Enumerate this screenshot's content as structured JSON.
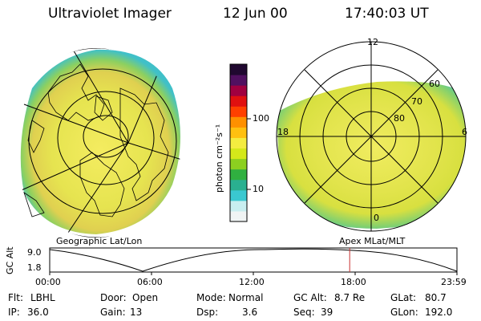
{
  "header": {
    "title": "Ultraviolet Imager",
    "date": "12 Jun 00",
    "time": "17:40:03 UT"
  },
  "colorbar": {
    "unit_label": "photon cm⁻²s⁻¹",
    "ticks": [
      "100",
      "10"
    ],
    "colors": [
      "#f0f4f4",
      "#c8eef0",
      "#3ac8d0",
      "#2ab090",
      "#30b040",
      "#8cd020",
      "#d4e81a",
      "#f4ec40",
      "#ffc010",
      "#ff9000",
      "#ff4000",
      "#e01010",
      "#a00040",
      "#501060",
      "#200830"
    ]
  },
  "left_panel": {
    "caption": "Geographic Lat/Lon",
    "colors": {
      "fill": "#e4e24c",
      "core": "#f0d060",
      "edge": "#30c0d0",
      "edge2": "#60d080"
    }
  },
  "right_panel": {
    "caption": "Apex MLat/MLT",
    "mlt_labels": {
      "top": "12",
      "left": "18",
      "right": "6",
      "bottom": "0"
    },
    "lat_labels": [
      "60",
      "70",
      "80"
    ]
  },
  "timeline": {
    "axis_label": "GC Alt",
    "y_ticks": [
      "9.0",
      "1.8"
    ],
    "x_ticks": [
      "00:00",
      "06:00",
      "12:00",
      "18:00",
      "23:59"
    ],
    "marker_time": "17:40",
    "marker_color": "#c83030"
  },
  "info": {
    "rows": [
      [
        {
          "key": "Flt:",
          "value": "LBHL"
        },
        {
          "key": "Door:",
          "value": "Open"
        },
        {
          "key": "Mode:",
          "value": "Normal"
        },
        {
          "key": "GC Alt:",
          "value": "8.7 Re"
        },
        {
          "key": "GLat:",
          "value": "80.7"
        }
      ],
      [
        {
          "key": "IP:",
          "value": "36.0"
        },
        {
          "key": "Gain:",
          "value": "13"
        },
        {
          "key": "Dsp:",
          "value": "3.6"
        },
        {
          "key": "Seq:",
          "value": "39"
        },
        {
          "key": "GLon:",
          "value": "192.0"
        }
      ]
    ]
  }
}
